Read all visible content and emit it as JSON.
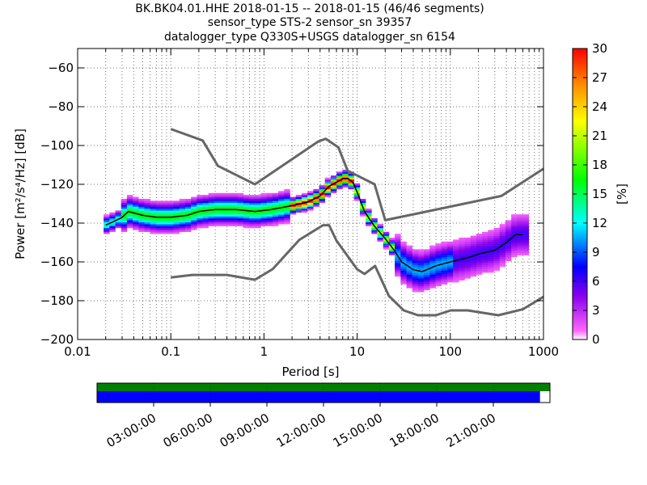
{
  "header": {
    "title_line1": "BK.BK04.01.HHE   2018-01-15 -- 2018-01-15  (46/46 segments)",
    "title_line2": "sensor_type STS-2 sensor_sn 39357",
    "title_line3": "datalogger_type Q330S+USGS datalogger_sn 6154"
  },
  "chart_data": {
    "type": "heatmap",
    "xlabel": "Period [s]",
    "ylabel": "Power [m²/s⁴/Hz] [dB]",
    "xscale": "log",
    "xlim": [
      0.01,
      1000
    ],
    "ylim": [
      -200,
      -50
    ],
    "x_ticks": [
      "0.01",
      "0.1",
      "1",
      "10",
      "100",
      "1000"
    ],
    "y_ticks": [
      "−60",
      "−80",
      "−100",
      "−120",
      "−140",
      "−160",
      "−180",
      "−200"
    ],
    "colorbar": {
      "label": "[%]",
      "range": [
        0,
        30
      ],
      "ticks": [
        "30",
        "27",
        "24",
        "21",
        "18",
        "15",
        "12",
        "9",
        "6",
        "3",
        "0"
      ]
    },
    "grid": true,
    "high_noise_model": {
      "x": [
        0.1,
        0.22,
        0.32,
        0.8,
        3.8,
        4.6,
        6.3,
        7.9,
        15.4,
        20,
        354,
        1000
      ],
      "y": [
        -91.5,
        -97.4,
        -110.5,
        -120,
        -98,
        -96.5,
        -101,
        -113,
        -120,
        -138.5,
        -126,
        -112
      ]
    },
    "low_noise_model": {
      "x": [
        0.1,
        0.17,
        0.4,
        0.8,
        1.24,
        2.4,
        4.3,
        5,
        6,
        10,
        12,
        15.6,
        21.9,
        31.6,
        45,
        70,
        101,
        154,
        328,
        600,
        1000
      ],
      "y": [
        -168,
        -166.7,
        -166.7,
        -169.2,
        -163.7,
        -148.6,
        -141.1,
        -141.1,
        -149,
        -163.8,
        -166.2,
        -162.1,
        -177.5,
        -185,
        -187.5,
        -187.5,
        -185,
        -185,
        -187.5,
        -184.4,
        -178
      ]
    },
    "mode_curve": {
      "x": [
        0.02,
        0.025,
        0.03,
        0.035,
        0.05,
        0.07,
        0.1,
        0.15,
        0.2,
        0.3,
        0.5,
        0.8,
        1.2,
        2,
        3,
        4,
        5,
        6,
        7,
        8,
        9,
        10,
        12,
        15,
        20,
        25,
        30,
        40,
        50,
        70,
        100,
        150,
        200,
        300,
        400,
        500,
        600
      ],
      "y": [
        -141,
        -139,
        -137,
        -134,
        -136,
        -137,
        -137,
        -136,
        -134,
        -133,
        -133,
        -134,
        -133,
        -131,
        -129,
        -126,
        -121,
        -119,
        -117,
        -117,
        -119,
        -124,
        -134,
        -141,
        -148,
        -154,
        -160,
        -164,
        -165,
        -162,
        -160,
        -158,
        -156,
        -154,
        -150,
        -146,
        -146
      ]
    },
    "time_axis": {
      "labels": [
        "03:00:00",
        "06:00:00",
        "09:00:00",
        "12:00:00",
        "15:00:00",
        "18:00:00",
        "21:00:00"
      ],
      "range_hours": [
        0,
        24
      ],
      "data_coverage_fraction": 0.978,
      "gap_coverage_fraction": 1.0,
      "data_color": "#0000ff",
      "gap_color": "#008000"
    }
  }
}
